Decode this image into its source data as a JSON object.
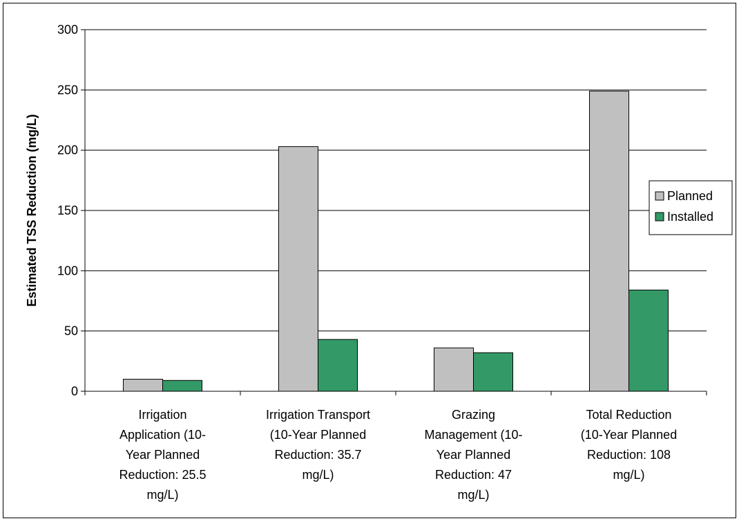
{
  "chart_data": {
    "type": "bar",
    "title": "",
    "xlabel": "",
    "ylabel": "Estimated TSS Reduction (mg/L)",
    "ylim": [
      0,
      300
    ],
    "yticks": [
      0,
      50,
      100,
      150,
      200,
      250,
      300
    ],
    "grid": true,
    "legend_position": "right",
    "categories": [
      [
        "Irrigation",
        "Application (10-",
        "Year Planned",
        "Reduction: 25.5",
        "mg/L)"
      ],
      [
        "Irrigation Transport",
        "(10-Year Planned",
        "Reduction: 35.7",
        "mg/L)"
      ],
      [
        "Grazing",
        "Management (10-",
        "Year Planned",
        "Reduction: 47",
        "mg/L)"
      ],
      [
        "Total Reduction",
        "(10-Year Planned",
        "Reduction: 108",
        "mg/L)"
      ]
    ],
    "series": [
      {
        "name": "Planned",
        "color": "#c0c0c0",
        "values": [
          10,
          203,
          36,
          249
        ]
      },
      {
        "name": "Installed",
        "color": "#339966",
        "values": [
          9,
          43,
          32,
          84
        ]
      }
    ]
  }
}
